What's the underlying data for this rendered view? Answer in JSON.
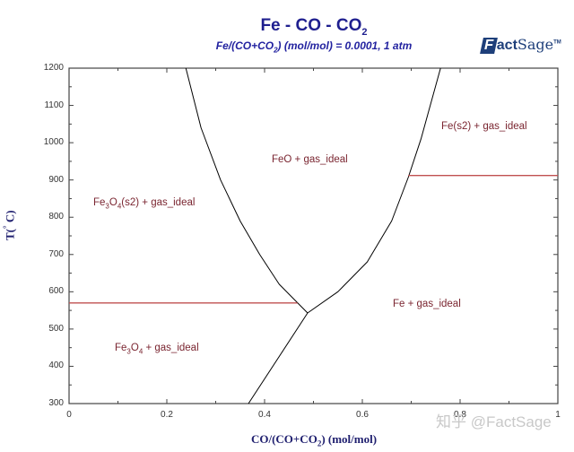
{
  "header": {
    "title": "Fe - CO - CO",
    "title_sub": "2",
    "subtitle_pre": "Fe/(CO+CO",
    "subtitle_sub": "2",
    "subtitle_post": ") (mol/mol) = 0.0001, 1 atm",
    "logo": {
      "f": "F",
      "act": "act",
      "sage": "Sage",
      "tm": "TM"
    }
  },
  "watermark": "知乎 @FactSage",
  "chart_data": {
    "type": "line",
    "title": "Fe - CO - CO2",
    "subtitle": "Fe/(CO+CO2) (mol/mol) = 0.0001, 1 atm",
    "xlabel": "CO/(CO+CO2) (mol/mol)",
    "ylabel": "T(°C)",
    "xlim": [
      0,
      1
    ],
    "ylim": [
      300,
      1200
    ],
    "grid": false,
    "x_ticks": [
      "0",
      "0.2",
      "0.4",
      "0.6",
      "0.8",
      "1"
    ],
    "y_ticks": [
      "300",
      "400",
      "500",
      "600",
      "700",
      "800",
      "900",
      "1000",
      "1100",
      "1200"
    ],
    "regions": [
      {
        "label": "Fe3O4(s2) + gas_ideal",
        "x": 0.15,
        "T": 790
      },
      {
        "label": "FeO + gas_ideal",
        "x": 0.49,
        "T": 955
      },
      {
        "label": "Fe(s2) + gas_ideal",
        "x": 0.85,
        "T": 1030
      },
      {
        "label": "Fe + gas_ideal",
        "x": 0.73,
        "T": 570
      },
      {
        "label": "Fe3O4 + gas_ideal",
        "x": 0.18,
        "T": 445
      }
    ],
    "series": [
      {
        "name": "Fe3O4/FeO boundary",
        "color": "#000000",
        "x": [
          0.239,
          0.27,
          0.31,
          0.35,
          0.39,
          0.43,
          0.488
        ],
        "y": [
          1200,
          1040,
          900,
          790,
          700,
          620,
          543
        ]
      },
      {
        "name": "FeO/Fe boundary",
        "color": "#000000",
        "x": [
          0.76,
          0.72,
          0.694,
          0.66,
          0.61,
          0.55,
          0.488
        ],
        "y": [
          1200,
          1010,
          907,
          790,
          680,
          600,
          543
        ]
      },
      {
        "name": "Fe3O4/Fe boundary",
        "color": "#000000",
        "x": [
          0.488,
          0.367
        ],
        "y": [
          543,
          300
        ]
      },
      {
        "name": "Fe3O4 magnetic transition",
        "color": "#c05050",
        "x": [
          0,
          0.467
        ],
        "y": [
          570,
          570
        ]
      },
      {
        "name": "Fe alpha/gamma transition",
        "color": "#c05050",
        "x": [
          0.694,
          1
        ],
        "y": [
          912,
          912
        ]
      }
    ]
  },
  "labels": {
    "y_axis": "T(",
    "y_axis_deg": "°",
    "y_axis_end": " C)",
    "x_axis_pre": "CO/(CO+CO",
    "x_axis_sub": "2",
    "x_axis_post": ") (mol/mol)",
    "r1a": "Fe",
    "r1b": "3",
    "r1c": "O",
    "r1d": "4",
    "r1e": "(s2) + gas_ideal",
    "r2": "FeO + gas_ideal",
    "r3": "Fe(s2) + gas_ideal",
    "r4": "Fe + gas_ideal",
    "r5a": "Fe",
    "r5b": "3",
    "r5c": "O",
    "r5d": "4",
    "r5e": " + gas_ideal"
  }
}
